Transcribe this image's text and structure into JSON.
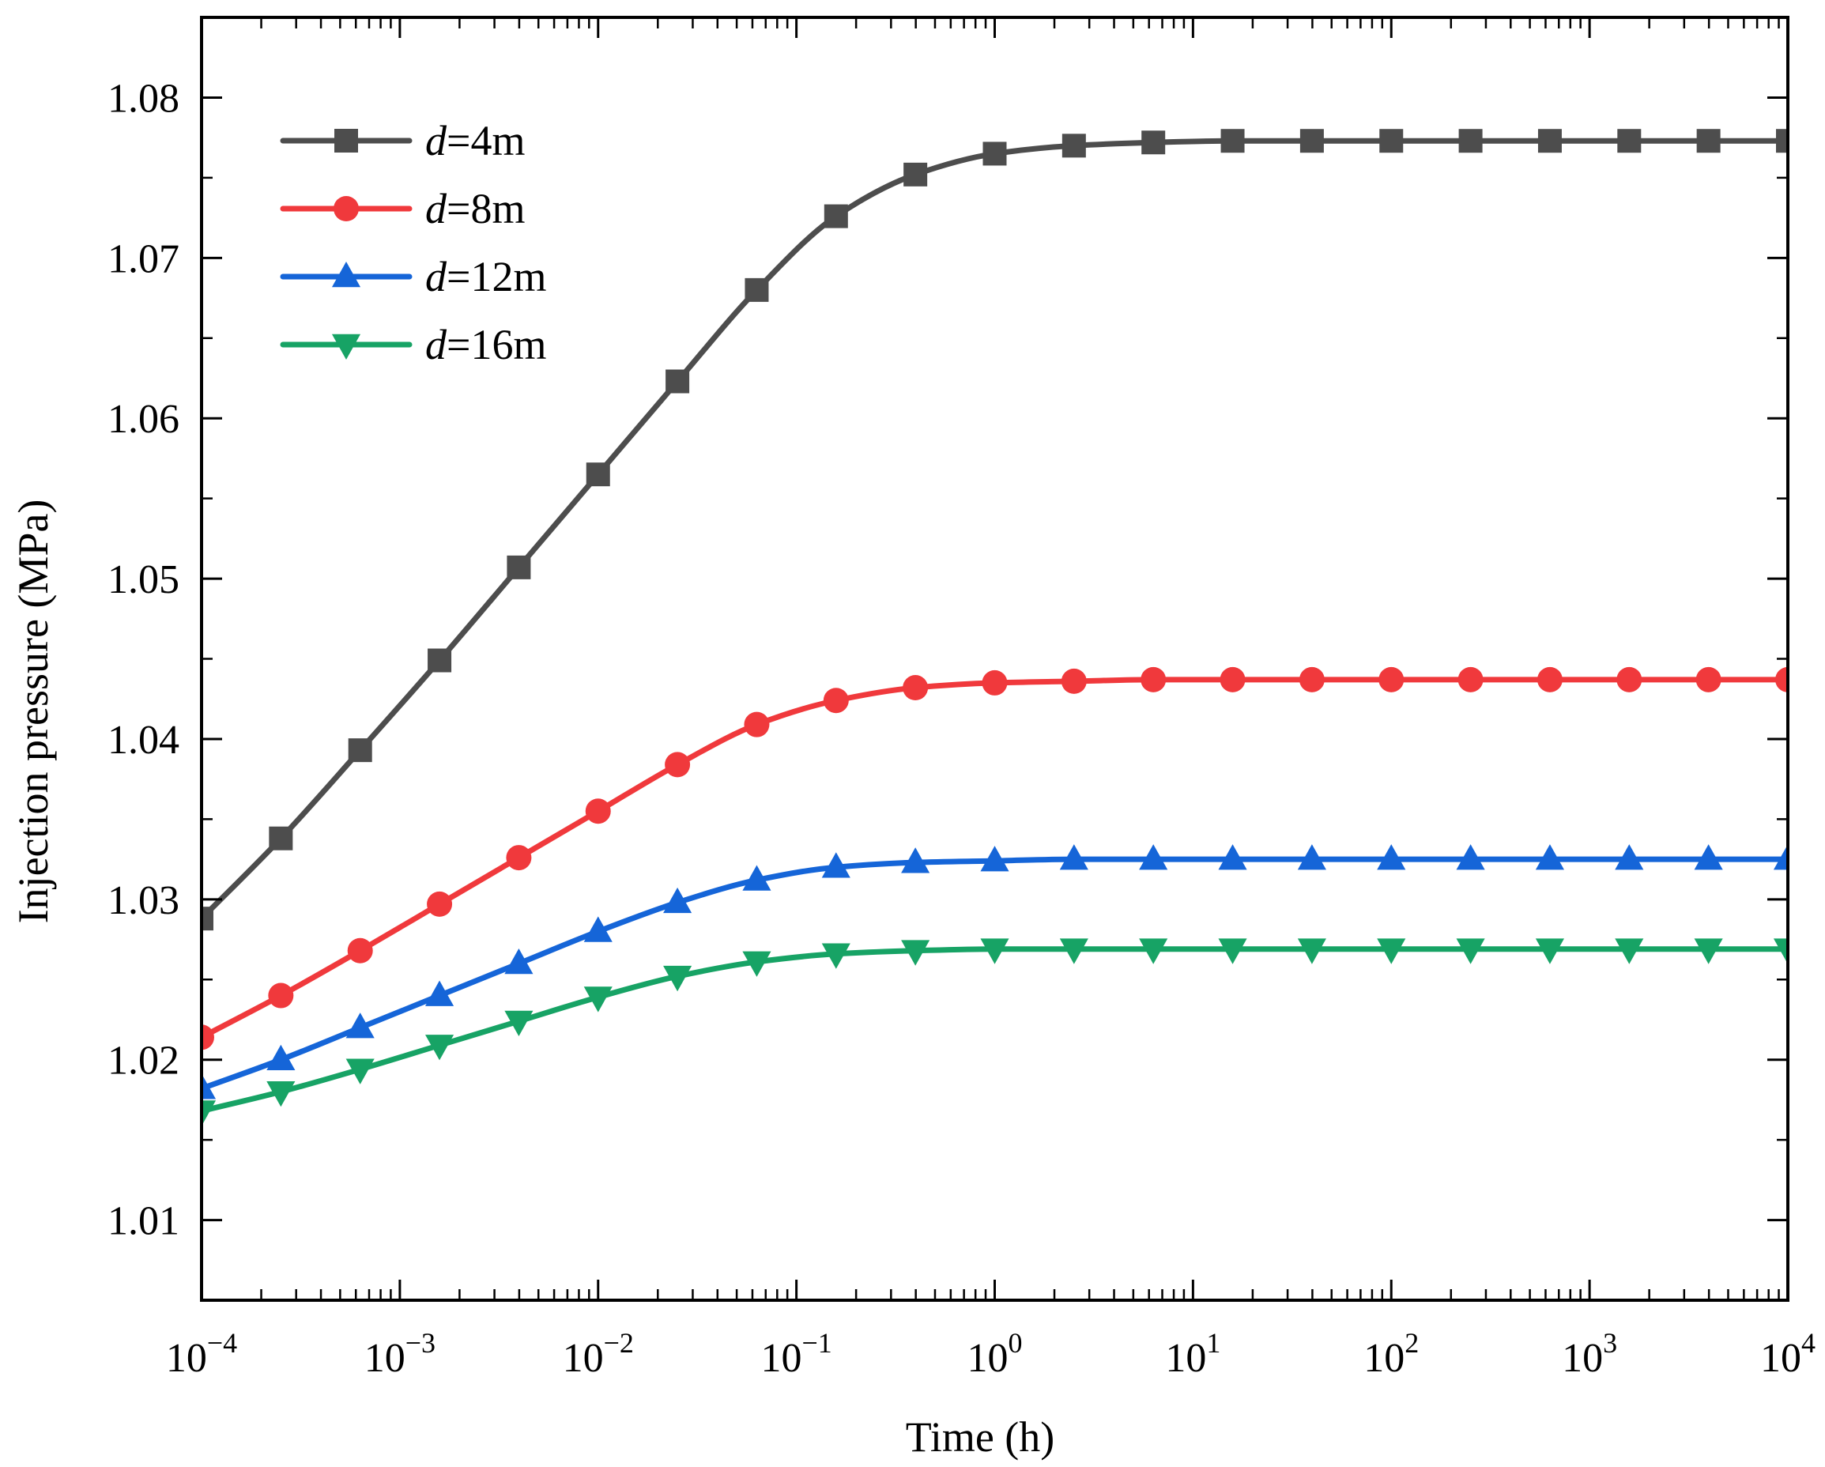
{
  "chart_data": {
    "type": "line",
    "title": "",
    "xlabel": "Time (h)",
    "ylabel": "Injection pressure (MPa)",
    "xscale": "log",
    "xlim": [
      0.0001,
      10000
    ],
    "ylim": [
      1.005,
      1.085
    ],
    "x_ticks": [
      {
        "value": 0.0001,
        "base": "10",
        "exp": "−4"
      },
      {
        "value": 0.001,
        "base": "10",
        "exp": "−3"
      },
      {
        "value": 0.01,
        "base": "10",
        "exp": "−2"
      },
      {
        "value": 0.1,
        "base": "10",
        "exp": "−1"
      },
      {
        "value": 1,
        "base": "10",
        "exp": "0"
      },
      {
        "value": 10,
        "base": "10",
        "exp": "1"
      },
      {
        "value": 100,
        "base": "10",
        "exp": "2"
      },
      {
        "value": 1000,
        "base": "10",
        "exp": "3"
      },
      {
        "value": 10000,
        "base": "10",
        "exp": "4"
      }
    ],
    "y_ticks": [
      {
        "value": 1.01,
        "label": "1.01"
      },
      {
        "value": 1.02,
        "label": "1.02"
      },
      {
        "value": 1.03,
        "label": "1.03"
      },
      {
        "value": 1.04,
        "label": "1.04"
      },
      {
        "value": 1.05,
        "label": "1.05"
      },
      {
        "value": 1.06,
        "label": "1.06"
      },
      {
        "value": 1.07,
        "label": "1.07"
      },
      {
        "value": 1.08,
        "label": "1.08"
      }
    ],
    "grid": false,
    "legend_position": "top-left",
    "marker_x_log10": [
      -4,
      -3.6,
      -3.2,
      -2.8,
      -2.4,
      -2.0,
      -1.6,
      -1.2,
      -0.8,
      -0.4,
      0.0,
      0.4,
      0.8,
      1.2,
      1.6,
      2.0,
      2.4,
      2.8,
      3.2,
      3.6,
      4.0
    ],
    "series": [
      {
        "name": "d=4m",
        "name_var": "d",
        "name_rest": "=4m",
        "color": "#4d4d4d",
        "marker": "square",
        "values": [
          1.0288,
          1.0338,
          1.0393,
          1.0449,
          1.0507,
          1.0565,
          1.0623,
          1.068,
          1.0726,
          1.0752,
          1.0765,
          1.077,
          1.0772,
          1.0773,
          1.0773,
          1.0773,
          1.0773,
          1.0773,
          1.0773,
          1.0773,
          1.0773
        ]
      },
      {
        "name": "d=8m",
        "name_var": "d",
        "name_rest": "=8m",
        "color": "#f0393c",
        "marker": "circle",
        "values": [
          1.0214,
          1.024,
          1.0268,
          1.0297,
          1.0326,
          1.0355,
          1.0384,
          1.0409,
          1.0424,
          1.0432,
          1.0435,
          1.0436,
          1.0437,
          1.0437,
          1.0437,
          1.0437,
          1.0437,
          1.0437,
          1.0437,
          1.0437,
          1.0437
        ]
      },
      {
        "name": "d=12m",
        "name_var": "d",
        "name_rest": "=12m",
        "color": "#1565d8",
        "marker": "triangle-up",
        "values": [
          1.0182,
          1.02,
          1.022,
          1.024,
          1.026,
          1.028,
          1.0298,
          1.0312,
          1.032,
          1.0323,
          1.0324,
          1.0325,
          1.0325,
          1.0325,
          1.0325,
          1.0325,
          1.0325,
          1.0325,
          1.0325,
          1.0325,
          1.0325
        ]
      },
      {
        "name": "d=16m",
        "name_var": "d",
        "name_rest": "=16m",
        "color": "#17a365",
        "marker": "triangle-down",
        "values": [
          1.0168,
          1.018,
          1.0194,
          1.0209,
          1.0224,
          1.0239,
          1.0252,
          1.0261,
          1.0266,
          1.0268,
          1.0269,
          1.0269,
          1.0269,
          1.0269,
          1.0269,
          1.0269,
          1.0269,
          1.0269,
          1.0269,
          1.0269,
          1.0269
        ]
      }
    ]
  }
}
